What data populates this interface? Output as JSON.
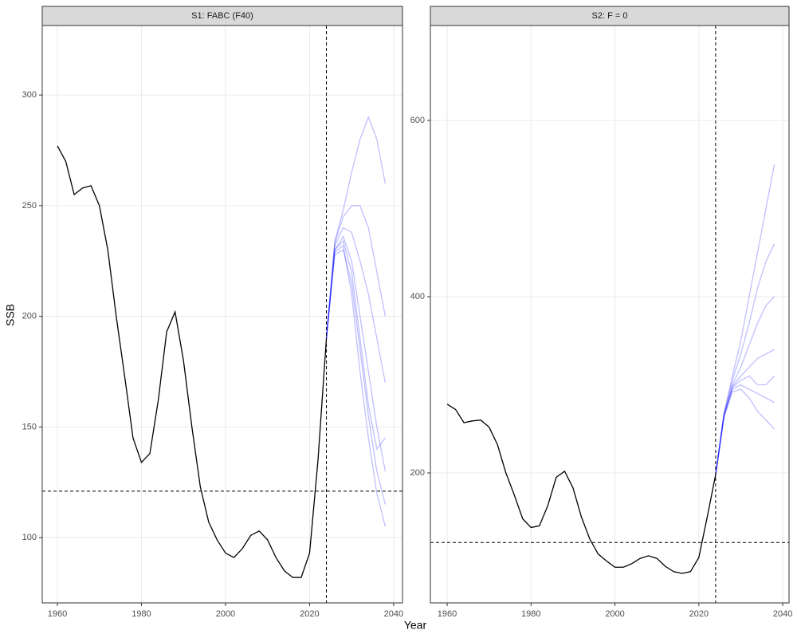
{
  "chart_data": [
    {
      "type": "line",
      "title": "S1: FABC (F40)",
      "y_label": "SSB",
      "x_label": "Year",
      "xlim": [
        1956.4,
        2042.1
      ],
      "xticks": [
        1960,
        1980,
        2000,
        2020,
        2040
      ],
      "ylim": [
        70.5,
        331.4
      ],
      "yticks": [
        100,
        150,
        200,
        250,
        300
      ],
      "grid": true,
      "vline": 2024,
      "hline": 121,
      "series": [
        {
          "color": "#000000",
          "opacity": 1,
          "x": [
            1960,
            1962,
            1964,
            1966,
            1968,
            1970,
            1972,
            1974,
            1976,
            1978,
            1980,
            1982,
            1984,
            1986,
            1988,
            1990,
            1992,
            1994,
            1996,
            1998,
            2000,
            2002,
            2004,
            2006,
            2008,
            2010,
            2012,
            2014,
            2016,
            2018,
            2020,
            2022,
            2024
          ],
          "values": [
            277,
            270,
            255,
            258,
            259,
            250,
            230,
            200,
            173,
            145,
            134,
            138,
            162,
            193,
            202,
            180,
            150,
            123,
            107,
            99,
            93,
            91,
            95,
            101,
            103,
            99,
            91,
            85,
            82,
            82,
            93,
            135,
            190
          ]
        },
        {
          "color": "#0000ff",
          "opacity": 0.25,
          "x": [
            2024,
            2026,
            2028,
            2030,
            2032,
            2034,
            2036,
            2038
          ],
          "values": [
            190,
            230,
            236,
            225,
            200,
            175,
            150,
            130
          ]
        },
        {
          "color": "#0000ff",
          "opacity": 0.25,
          "x": [
            2024,
            2026,
            2028,
            2030,
            2032,
            2034,
            2036,
            2038
          ],
          "values": [
            190,
            232,
            240,
            238,
            225,
            210,
            190,
            170
          ]
        },
        {
          "color": "#0000ff",
          "opacity": 0.25,
          "x": [
            2024,
            2026,
            2028,
            2030,
            2032,
            2034,
            2036,
            2038
          ],
          "values": [
            190,
            228,
            230,
            215,
            185,
            155,
            130,
            115
          ]
        },
        {
          "color": "#0000ff",
          "opacity": 0.25,
          "x": [
            2024,
            2026,
            2028,
            2030,
            2032,
            2034,
            2036,
            2038
          ],
          "values": [
            190,
            233,
            245,
            250,
            250,
            240,
            220,
            200
          ]
        },
        {
          "color": "#0000ff",
          "opacity": 0.25,
          "x": [
            2024,
            2026,
            2028,
            2030,
            2032,
            2034,
            2036,
            2038
          ],
          "values": [
            190,
            230,
            234,
            220,
            190,
            160,
            140,
            145
          ]
        },
        {
          "color": "#0000ff",
          "opacity": 0.25,
          "x": [
            2024,
            2026,
            2028,
            2030,
            2032,
            2034,
            2036,
            2038
          ],
          "values": [
            190,
            234,
            248,
            265,
            280,
            290,
            280,
            260
          ]
        },
        {
          "color": "#0000ff",
          "opacity": 0.25,
          "x": [
            2024,
            2026,
            2028,
            2030,
            2032,
            2034,
            2036,
            2038
          ],
          "values": [
            190,
            229,
            232,
            210,
            175,
            145,
            120,
            105
          ]
        }
      ]
    },
    {
      "type": "line",
      "title": "S2: F = 0",
      "xlim": [
        1956.0,
        2041.5
      ],
      "xticks": [
        1960,
        1980,
        2000,
        2020,
        2040
      ],
      "ylim": [
        52.5,
        707.7
      ],
      "yticks": [
        200,
        400,
        600
      ],
      "grid": true,
      "vline": 2024,
      "hline": 121,
      "series": [
        {
          "color": "#000000",
          "opacity": 1,
          "x": [
            1960,
            1962,
            1964,
            1966,
            1968,
            1970,
            1972,
            1974,
            1976,
            1978,
            1980,
            1982,
            1984,
            1986,
            1988,
            1990,
            1992,
            1994,
            1996,
            1998,
            2000,
            2002,
            2004,
            2006,
            2008,
            2010,
            2012,
            2014,
            2016,
            2018,
            2020,
            2022,
            2024
          ],
          "values": [
            278,
            272,
            257,
            259,
            260,
            252,
            232,
            200,
            175,
            148,
            138,
            140,
            163,
            195,
            202,
            183,
            150,
            125,
            108,
            100,
            93,
            93,
            97,
            103,
            106,
            103,
            94,
            88,
            86,
            88,
            104,
            150,
            198
          ]
        },
        {
          "color": "#0000ff",
          "opacity": 0.25,
          "x": [
            2024,
            2026,
            2028,
            2030,
            2032,
            2034,
            2036,
            2038
          ],
          "values": [
            198,
            265,
            298,
            310,
            320,
            330,
            335,
            340
          ]
        },
        {
          "color": "#0000ff",
          "opacity": 0.25,
          "x": [
            2024,
            2026,
            2028,
            2030,
            2032,
            2034,
            2036,
            2038
          ],
          "values": [
            198,
            266,
            300,
            320,
            345,
            370,
            390,
            400
          ]
        },
        {
          "color": "#0000ff",
          "opacity": 0.25,
          "x": [
            2024,
            2026,
            2028,
            2030,
            2032,
            2034,
            2036,
            2038
          ],
          "values": [
            198,
            264,
            295,
            300,
            295,
            290,
            285,
            280
          ]
        },
        {
          "color": "#0000ff",
          "opacity": 0.25,
          "x": [
            2024,
            2026,
            2028,
            2030,
            2032,
            2034,
            2036,
            2038
          ],
          "values": [
            198,
            267,
            305,
            335,
            370,
            410,
            440,
            460
          ]
        },
        {
          "color": "#0000ff",
          "opacity": 0.25,
          "x": [
            2024,
            2026,
            2028,
            2030,
            2032,
            2034,
            2036,
            2038
          ],
          "values": [
            198,
            263,
            292,
            295,
            285,
            270,
            260,
            250
          ]
        },
        {
          "color": "#0000ff",
          "opacity": 0.25,
          "x": [
            2024,
            2026,
            2028,
            2030,
            2032,
            2034,
            2036,
            2038
          ],
          "values": [
            198,
            268,
            310,
            350,
            400,
            450,
            500,
            550
          ]
        },
        {
          "color": "#0000ff",
          "opacity": 0.25,
          "x": [
            2024,
            2026,
            2028,
            2030,
            2032,
            2034,
            2036,
            2038
          ],
          "values": [
            198,
            265,
            297,
            305,
            310,
            300,
            300,
            310
          ]
        }
      ]
    }
  ]
}
